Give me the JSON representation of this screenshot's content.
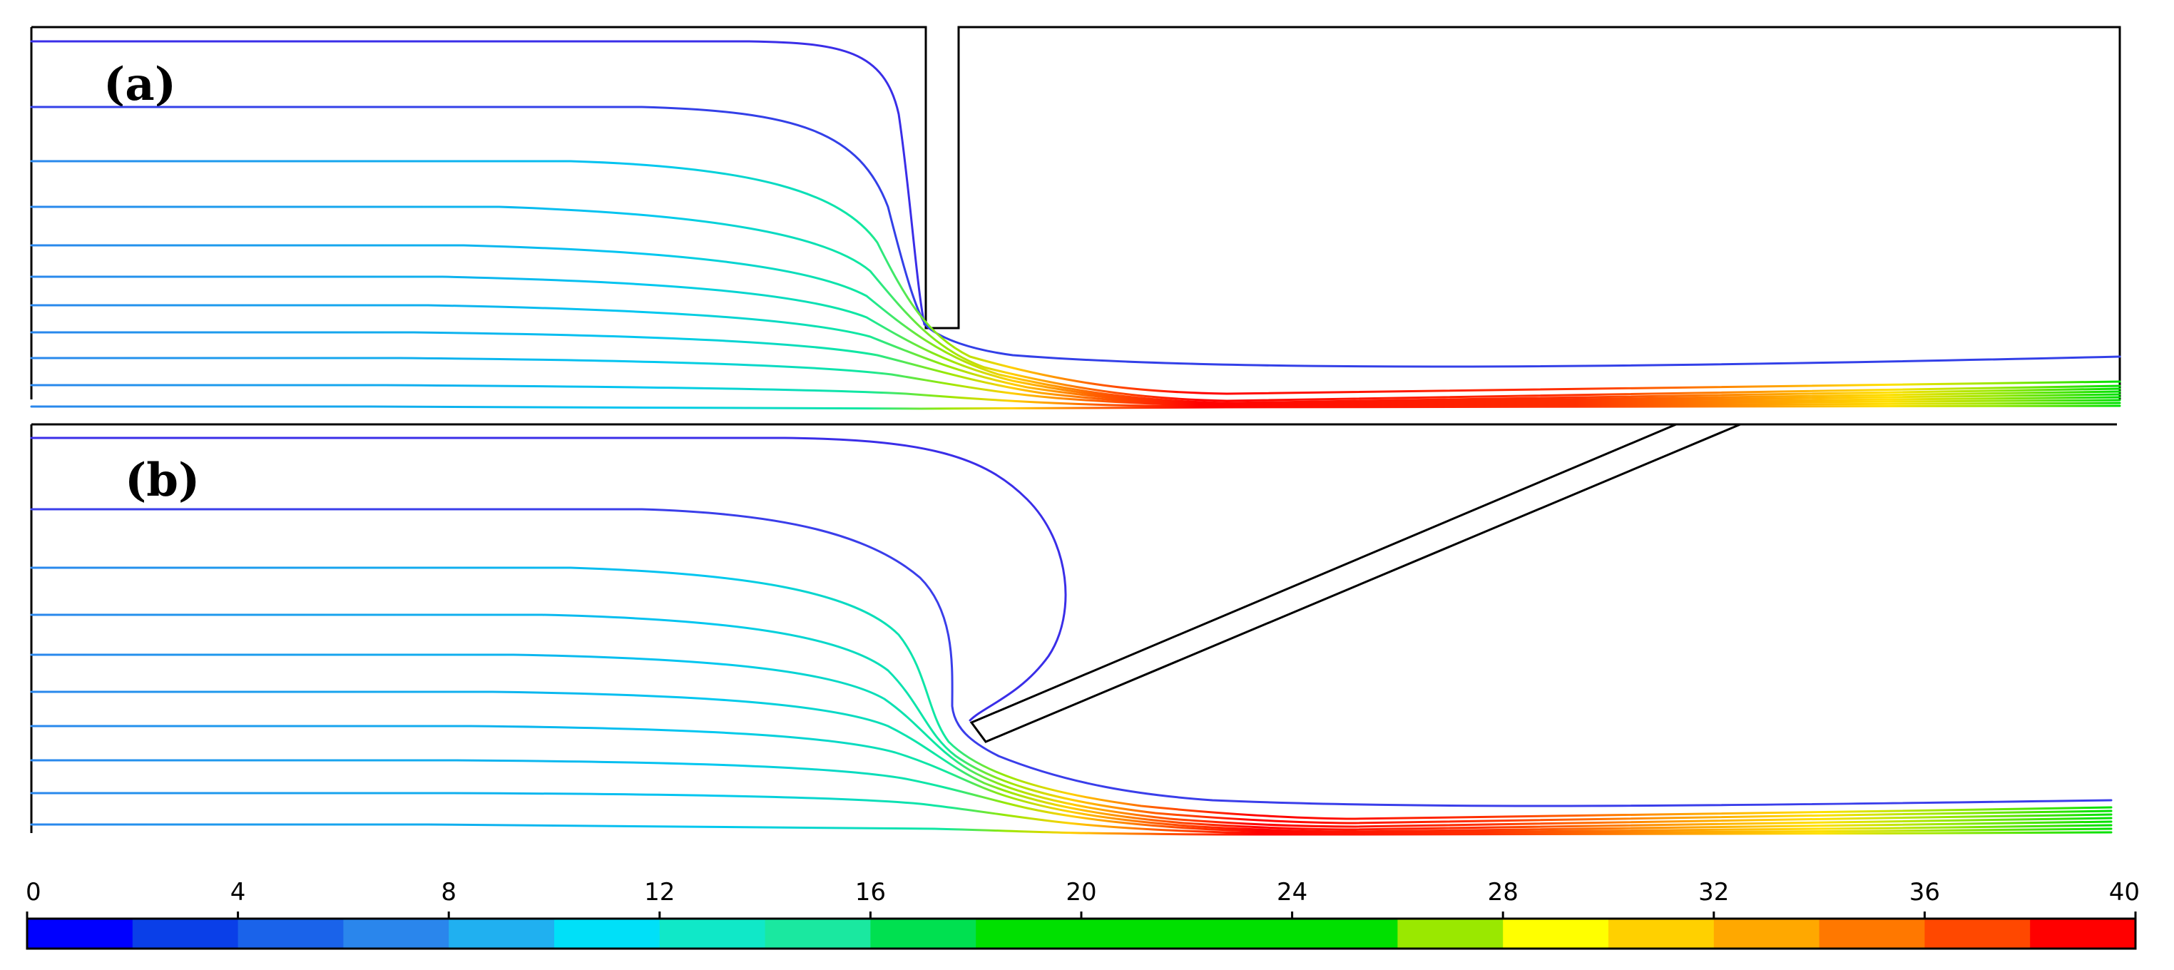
{
  "panels": [
    {
      "id": "a",
      "label": "(a)"
    },
    {
      "id": "b",
      "label": "(b)"
    }
  ],
  "colorbar": {
    "min": 0,
    "max": 40,
    "ticks": [
      "0",
      "4",
      "8",
      "12",
      "16",
      "20",
      "24",
      "28",
      "32",
      "36",
      "40"
    ],
    "levels": 20,
    "colors": [
      "#0000ff",
      "#0a3fe8",
      "#1a63ea",
      "#2a86ec",
      "#20b0f0",
      "#00e0f8",
      "#10e8c8",
      "#1ae8a0",
      "#00e050",
      "#00e000",
      "#00e000",
      "#00e000",
      "#00e000",
      "#9ae800",
      "#ffff00",
      "#ffd000",
      "#ffa800",
      "#ff7800",
      "#ff4800",
      "#ff0000"
    ]
  },
  "streamline_palette": {
    "low": "#2a2af0",
    "mid": "#00d0f0",
    "green": "#00e000",
    "yellow": "#ffff00",
    "orange": "#ff8000",
    "high": "#ff0000"
  }
}
